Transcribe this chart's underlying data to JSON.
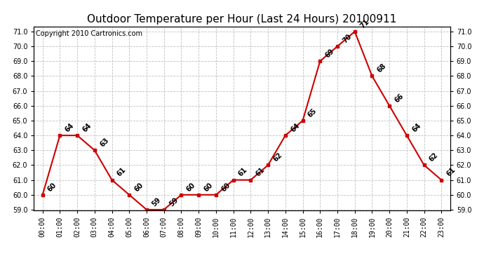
{
  "title": "Outdoor Temperature per Hour (Last 24 Hours) 20100911",
  "copyright": "Copyright 2010 Cartronics.com",
  "hours": [
    "00:00",
    "01:00",
    "02:00",
    "03:00",
    "04:00",
    "05:00",
    "06:00",
    "07:00",
    "08:00",
    "09:00",
    "10:00",
    "11:00",
    "12:00",
    "13:00",
    "14:00",
    "15:00",
    "16:00",
    "17:00",
    "18:00",
    "19:00",
    "20:00",
    "21:00",
    "22:00",
    "23:00"
  ],
  "temps": [
    60,
    64,
    64,
    63,
    61,
    60,
    59,
    59,
    60,
    60,
    60,
    61,
    61,
    62,
    64,
    65,
    69,
    70,
    71,
    68,
    66,
    64,
    62,
    61
  ],
  "line_color": "#cc0000",
  "marker_color": "#cc0000",
  "bg_color": "#ffffff",
  "grid_color": "#c0c0c0",
  "ylim_min": 59.0,
  "ylim_max": 71.0,
  "ytick_interval": 1.0,
  "title_fontsize": 11,
  "label_fontsize": 7,
  "copyright_fontsize": 7,
  "tick_fontsize": 7
}
